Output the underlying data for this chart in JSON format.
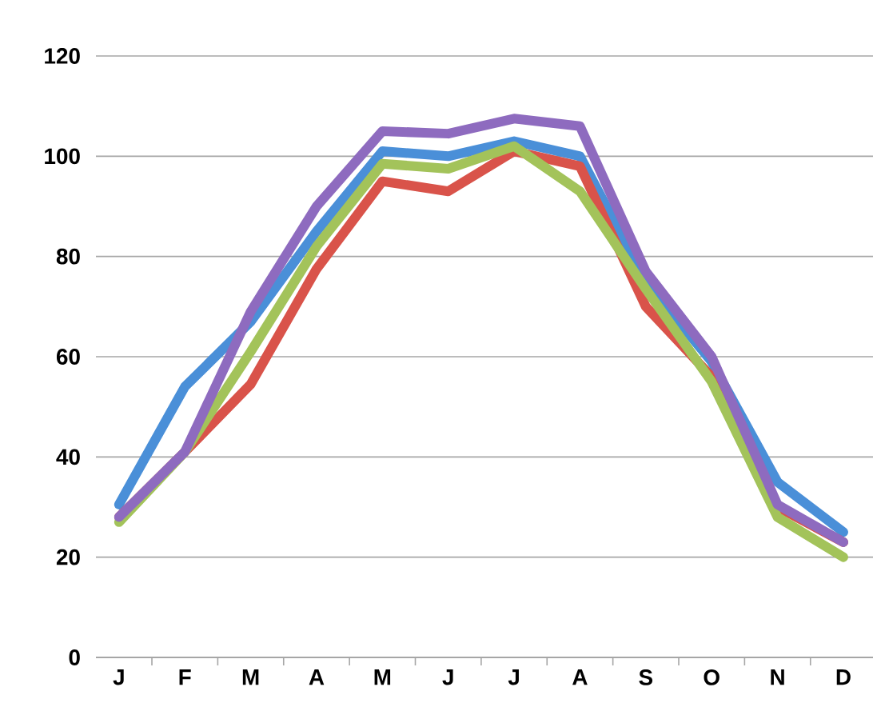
{
  "chart_data": {
    "type": "line",
    "categories": [
      "J",
      "F",
      "M",
      "A",
      "M",
      "J",
      "J",
      "A",
      "S",
      "O",
      "N",
      "D"
    ],
    "series": [
      {
        "color": "#4a8fd8",
        "values": [
          30.5,
          54,
          67,
          85,
          101,
          100,
          103,
          100,
          75,
          59,
          35,
          25
        ]
      },
      {
        "color": "#d9534a",
        "values": [
          28,
          41,
          54.5,
          77.5,
          95,
          93,
          101,
          98,
          70,
          56,
          30,
          23
        ]
      },
      {
        "color": "#a3c35a",
        "values": [
          27,
          41,
          61,
          82,
          98.5,
          97.5,
          102,
          93,
          73.5,
          55,
          28,
          20
        ]
      },
      {
        "color": "#8e6bbf",
        "values": [
          28,
          41,
          69,
          90,
          105,
          104.5,
          107.5,
          106,
          77,
          60,
          30.5,
          23
        ]
      }
    ],
    "ylim": [
      0,
      120
    ],
    "yticks": [
      0,
      20,
      40,
      60,
      80,
      100,
      120
    ],
    "grid": "y",
    "line_style": "solid"
  }
}
